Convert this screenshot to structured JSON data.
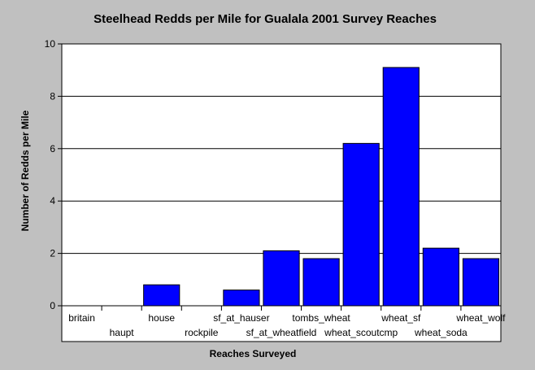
{
  "chart_data": {
    "type": "bar",
    "title": "Steelhead Redds per Mile for Gualala 2001 Survey Reaches",
    "xlabel": "Reaches Surveyed",
    "ylabel": "Number of Redds per Mile",
    "ylim": [
      0,
      10
    ],
    "yticks": [
      "0",
      "2",
      "4",
      "6",
      "8",
      "10"
    ],
    "grid": true,
    "legend": "none",
    "bar_color": "#0000ff",
    "plot_background": "#ffffff",
    "page_background": "#c0c0c0",
    "categories": [
      "britain",
      "haupt",
      "house",
      "rockpile",
      "sf_at_hauser",
      "sf_at_wheatfield",
      "tombs_wheat",
      "wheat_scoutcmp",
      "wheat_sf",
      "wheat_soda",
      "wheat_wolf"
    ],
    "values": [
      0,
      0,
      0.8,
      0,
      0.6,
      2.1,
      1.8,
      6.2,
      9.1,
      2.2,
      1.8
    ]
  }
}
